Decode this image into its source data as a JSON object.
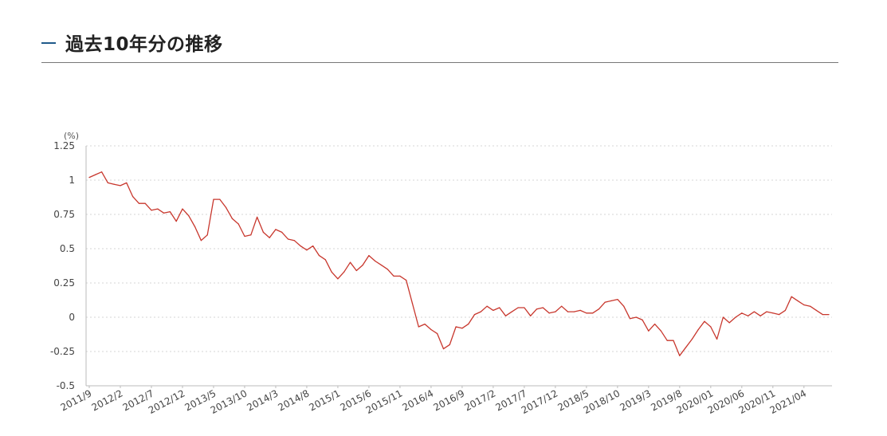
{
  "header": {
    "title": "過去10年分の推移"
  },
  "chart_data": {
    "type": "line",
    "ylabel": "(%)",
    "ylim": [
      -0.5,
      1.25
    ],
    "yticks": [
      1.25,
      1,
      0.75,
      0.5,
      0.25,
      0,
      -0.25,
      -0.5
    ],
    "grid": true,
    "line_color": "#c8372d",
    "x_tick_labels": [
      "2011/9",
      "2012/2",
      "2012/7",
      "2012/12",
      "2013/5",
      "2013/10",
      "2014/3",
      "2014/8",
      "2015/1",
      "2015/6",
      "2015/11",
      "2016/4",
      "2016/9",
      "2017/2",
      "2017/7",
      "2017/12",
      "2018/5",
      "2018/10",
      "2019/3",
      "2019/8",
      "2020/01",
      "2020/06",
      "2020/11",
      "2021/04"
    ],
    "series": [
      {
        "values": [
          1.02,
          1.04,
          1.06,
          0.98,
          0.97,
          0.96,
          0.98,
          0.88,
          0.83,
          0.83,
          0.78,
          0.79,
          0.76,
          0.77,
          0.7,
          0.79,
          0.74,
          0.66,
          0.56,
          0.6,
          0.86,
          0.86,
          0.8,
          0.72,
          0.68,
          0.59,
          0.6,
          0.73,
          0.62,
          0.58,
          0.64,
          0.62,
          0.57,
          0.56,
          0.52,
          0.49,
          0.52,
          0.45,
          0.42,
          0.33,
          0.28,
          0.33,
          0.4,
          0.34,
          0.38,
          0.45,
          0.41,
          0.38,
          0.35,
          0.3,
          0.3,
          0.27,
          0.1,
          -0.07,
          -0.05,
          -0.09,
          -0.12,
          -0.23,
          -0.2,
          -0.07,
          -0.08,
          -0.05,
          0.02,
          0.04,
          0.08,
          0.05,
          0.07,
          0.01,
          0.04,
          0.07,
          0.07,
          0.01,
          0.06,
          0.07,
          0.03,
          0.04,
          0.08,
          0.04,
          0.04,
          0.05,
          0.03,
          0.03,
          0.06,
          0.11,
          0.12,
          0.13,
          0.08,
          -0.01,
          0.0,
          -0.02,
          -0.1,
          -0.05,
          -0.1,
          -0.17,
          -0.17,
          -0.28,
          -0.22,
          -0.16,
          -0.09,
          -0.03,
          -0.07,
          -0.16,
          0.0,
          -0.04,
          0.0,
          0.03,
          0.01,
          0.04,
          0.01,
          0.04,
          0.03,
          0.02,
          0.05,
          0.15,
          0.12,
          0.09,
          0.08,
          0.05,
          0.02,
          0.02
        ]
      }
    ]
  }
}
